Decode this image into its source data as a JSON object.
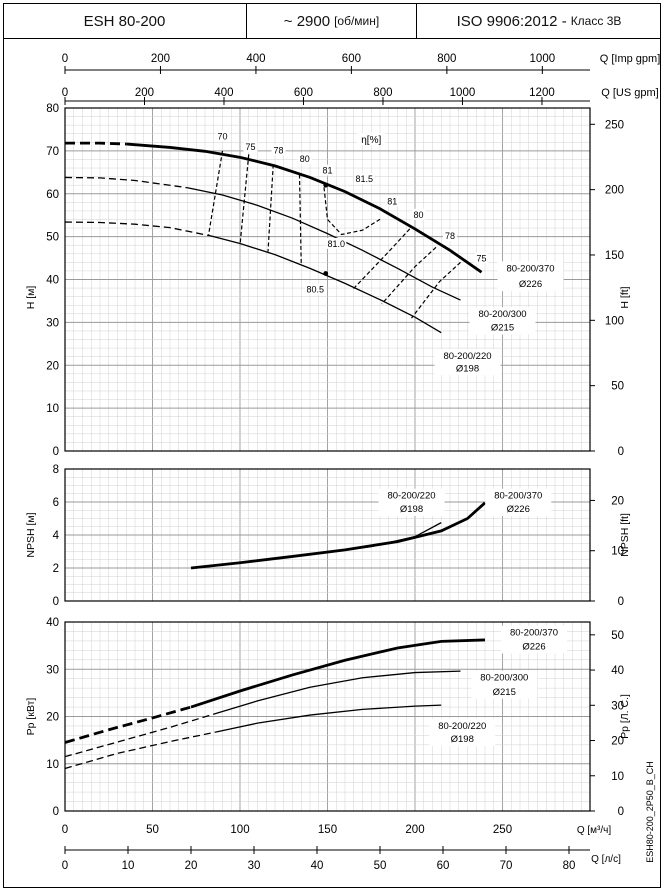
{
  "header": {
    "model": "ESH 80-200",
    "speed": "~ 2900",
    "speed_unit": "[об/мин]",
    "standard": "ISO 9906:2012 -",
    "class": "Класс 3B"
  },
  "doc_code": "ESH80-200_2P50_B_CH",
  "axes": {
    "q_imp": {
      "label": "Q [Imp gpm]",
      "ticks": [
        "0",
        "200",
        "400",
        "600",
        "800",
        "1000"
      ]
    },
    "q_us": {
      "label": "Q [US gpm]",
      "ticks": [
        "0",
        "200",
        "400",
        "600",
        "800",
        "1000",
        "1200"
      ]
    },
    "q_m3h": {
      "label": "Q [м³/ч]",
      "ticks": [
        "0",
        "50",
        "100",
        "150",
        "200",
        "250"
      ]
    },
    "q_ls": {
      "label": "Q [л/с]",
      "ticks": [
        "0",
        "10",
        "20",
        "30",
        "40",
        "50",
        "60",
        "70",
        "80"
      ]
    }
  },
  "chart_data": [
    {
      "id": "head",
      "type": "line",
      "xlabel": "Q [м³/ч]",
      "ylabel": "H [м]",
      "y2label": "H [ft]",
      "xlim": [
        0,
        300
      ],
      "ylim": [
        0,
        80
      ],
      "y2lim": [
        0,
        262.47
      ],
      "yticks": [
        "0",
        "10",
        "20",
        "30",
        "40",
        "50",
        "60",
        "70",
        "80"
      ],
      "y2ticks": [
        "0",
        "50",
        "100",
        "150",
        "200",
        "250"
      ],
      "series": [
        {
          "name": "80-200/370",
          "diameter": "Ø226",
          "weight": "bold",
          "dashed_until": 35,
          "x": [
            0,
            20,
            35,
            60,
            80,
            100,
            120,
            140,
            160,
            180,
            200,
            220,
            238
          ],
          "y": [
            71.8,
            71.8,
            71.6,
            70.8,
            69.9,
            68.5,
            66.5,
            63.8,
            60.5,
            56.5,
            51.8,
            46.8,
            41.7
          ]
        },
        {
          "name": "80-200/300",
          "diameter": "Ø215",
          "weight": "normal",
          "dashed_until": 70,
          "x": [
            0,
            20,
            40,
            70,
            90,
            110,
            130,
            150,
            170,
            190,
            210,
            226
          ],
          "y": [
            63.8,
            63.7,
            63.1,
            61.4,
            59.7,
            57.3,
            54.3,
            50.7,
            46.8,
            42.6,
            38.2,
            35.2
          ]
        },
        {
          "name": "80-200/220",
          "diameter": "Ø198",
          "weight": "normal",
          "dashed_until": 83,
          "x": [
            0,
            20,
            40,
            60,
            83,
            100,
            120,
            140,
            160,
            180,
            200,
            215
          ],
          "y": [
            53.4,
            53.3,
            52.9,
            52.1,
            50.2,
            48.4,
            45.8,
            42.6,
            39.1,
            35.3,
            31.2,
            27.6
          ]
        }
      ],
      "efficiency_label": "η[%]",
      "efficiency_labels": [
        {
          "text": "70",
          "q": 90,
          "h": 72.7
        },
        {
          "text": "75",
          "q": 106,
          "h": 70.2
        },
        {
          "text": "78",
          "q": 122,
          "h": 69.4
        },
        {
          "text": "80",
          "q": 137,
          "h": 67.4
        },
        {
          "text": "81",
          "q": 150,
          "h": 64.7
        },
        {
          "text": "81.5",
          "q": 171,
          "h": 62.7
        },
        {
          "text": "81",
          "q": 187,
          "h": 57.5
        },
        {
          "text": "80",
          "q": 202,
          "h": 54.4
        },
        {
          "text": "78",
          "q": 220,
          "h": 49.4
        },
        {
          "text": "75",
          "q": 238,
          "h": 44.2
        },
        {
          "text": "81.0",
          "q": 155,
          "h": 47.6
        },
        {
          "text": "80.5",
          "q": 143,
          "h": 37.0
        }
      ],
      "curve_labels": [
        {
          "name": "80-200/370",
          "diameter": "Ø226",
          "q": 266,
          "h": 41.9,
          "h2": 38.2
        },
        {
          "name": "80-200/300",
          "diameter": "Ø215",
          "q": 250,
          "h": 31.2,
          "h2": 28.1
        },
        {
          "name": "80-200/220",
          "diameter": "Ø198",
          "q": 230,
          "h": 21.4,
          "h2": 18.6
        }
      ]
    },
    {
      "id": "npsh",
      "type": "line",
      "xlabel": "Q [м³/ч]",
      "ylabel": "NPSH [м]",
      "y2label": "NPSH [ft]",
      "xlim": [
        0,
        300
      ],
      "ylim": [
        0,
        8
      ],
      "y2lim": [
        0,
        26.25
      ],
      "yticks": [
        "0",
        "2",
        "4",
        "6",
        "8"
      ],
      "y2ticks": [
        "0",
        "10",
        "20"
      ],
      "series": [
        {
          "name": "80-200/370",
          "diameter": "Ø226",
          "weight": "bold",
          "x": [
            72,
            100,
            130,
            160,
            190,
            215,
            230,
            240
          ],
          "y": [
            2.0,
            2.32,
            2.7,
            3.1,
            3.6,
            4.25,
            5.0,
            5.95
          ]
        },
        {
          "name": "80-200/220",
          "diameter": "Ø198",
          "weight": "normal",
          "x": [
            150,
            175,
            200,
            215
          ],
          "y": [
            2.95,
            3.3,
            3.9,
            4.75
          ]
        }
      ],
      "curve_labels": [
        {
          "name": "80-200/220",
          "diameter": "Ø198",
          "q": 198,
          "h": 6.2,
          "h2": 5.4
        },
        {
          "name": "80-200/370",
          "diameter": "Ø226",
          "q": 259,
          "h": 6.2,
          "h2": 5.4
        }
      ]
    },
    {
      "id": "power",
      "type": "line",
      "xlabel": "Q [м³/ч]",
      "ylabel": "Pp [кВт]",
      "y2label": "Pp [Л. С.]",
      "xlim": [
        0,
        300
      ],
      "ylim": [
        0,
        40
      ],
      "y2lim": [
        0,
        53.64
      ],
      "yticks": [
        "0",
        "10",
        "20",
        "30",
        "40"
      ],
      "y2ticks": [
        "0",
        "10",
        "20",
        "30",
        "40",
        "50"
      ],
      "series": [
        {
          "name": "80-200/370",
          "diameter": "Ø226",
          "weight": "bold",
          "dashed_until": 72,
          "x": [
            0,
            25,
            50,
            72,
            100,
            130,
            160,
            190,
            215,
            240
          ],
          "y": [
            14.5,
            17.2,
            19.7,
            22.0,
            25.4,
            28.8,
            31.9,
            34.5,
            35.9,
            36.2
          ]
        },
        {
          "name": "80-200/300",
          "diameter": "Ø215",
          "weight": "normal",
          "dashed_until": 85,
          "x": [
            0,
            30,
            60,
            85,
            110,
            140,
            170,
            200,
            226
          ],
          "y": [
            11.5,
            14.6,
            17.7,
            20.5,
            23.3,
            26.2,
            28.2,
            29.3,
            29.6
          ]
        },
        {
          "name": "80-200/220",
          "diameter": "Ø198",
          "weight": "normal",
          "dashed_until": 86,
          "x": [
            0,
            30,
            60,
            86,
            110,
            140,
            170,
            200,
            215
          ],
          "y": [
            9.0,
            12.2,
            14.7,
            16.7,
            18.6,
            20.3,
            21.5,
            22.2,
            22.4
          ]
        }
      ],
      "curve_labels": [
        {
          "name": "80-200/370",
          "diameter": "Ø226",
          "q": 268,
          "h": 37.1,
          "h2": 34.2
        },
        {
          "name": "80-200/300",
          "diameter": "Ø215",
          "q": 251,
          "h": 27.6,
          "h2": 24.6
        },
        {
          "name": "80-200/220",
          "diameter": "Ø198",
          "q": 227,
          "h": 17.4,
          "h2": 14.6
        }
      ]
    }
  ]
}
